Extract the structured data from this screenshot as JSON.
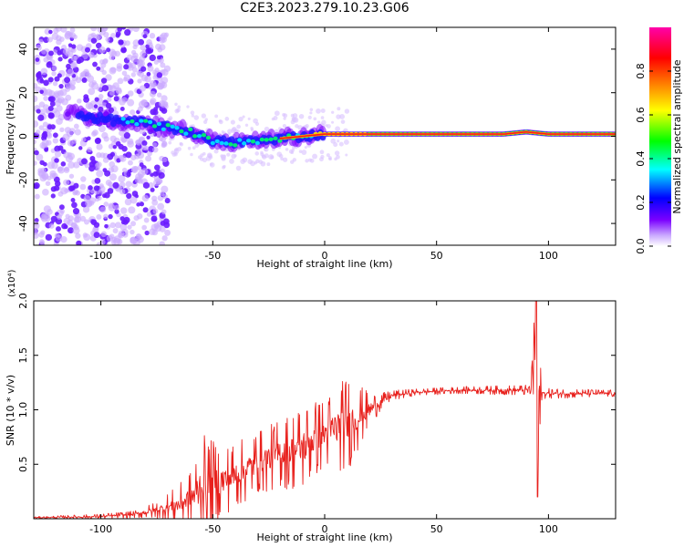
{
  "figure": {
    "title": "C2E3.2023.279.10.23.G06"
  },
  "chart_data": [
    {
      "type": "heatmap",
      "xlabel": "Height of straight line (km)",
      "ylabel": "Frequency (Hz)",
      "xlim": [
        -130,
        130
      ],
      "ylim": [
        -50,
        50
      ],
      "xticks": [
        -100,
        -50,
        0,
        50,
        100
      ],
      "yticks": [
        -40,
        -20,
        0,
        20,
        40
      ],
      "colorbar": {
        "label": "Normalized spectral amplitude",
        "range": [
          0.0,
          1.0
        ],
        "ticks": [
          0.0,
          0.2,
          0.4,
          0.6,
          0.8
        ],
        "colormap": [
          "#ffffff",
          "#c9a8ff",
          "#7b00ff",
          "#0000ff",
          "#00ffff",
          "#00ff00",
          "#ffff00",
          "#ff8000",
          "#ff0000",
          "#ff00aa"
        ]
      },
      "ridge": {
        "x": [
          -130,
          -110,
          -100,
          -90,
          -80,
          -70,
          -60,
          -50,
          -40,
          -30,
          -20,
          -10,
          0,
          10,
          20,
          50,
          80,
          90,
          100,
          130
        ],
        "y": [
          13,
          10,
          8,
          7,
          6,
          4,
          2,
          -2,
          -3,
          -2,
          -1,
          0,
          1,
          1,
          1,
          1,
          1,
          2,
          1,
          1
        ]
      }
    },
    {
      "type": "line",
      "xlabel": "Height of straight line (km)",
      "ylabel": "SNR (10 * v/v)",
      "y_multiplier_label": "(x10⁴)",
      "xlim": [
        -130,
        130
      ],
      "ylim": [
        0,
        2.0
      ],
      "xticks": [
        -100,
        -50,
        0,
        50,
        100
      ],
      "yticks": [
        0.5,
        1.0,
        1.5,
        2.0
      ],
      "color": "#e8201c",
      "envelope": {
        "x": [
          -130,
          -100,
          -85,
          -75,
          -65,
          -58,
          -55,
          -50,
          -45,
          -40,
          -35,
          -30,
          -25,
          -20,
          -15,
          -10,
          -5,
          0,
          5,
          10,
          15,
          20,
          25,
          30,
          40,
          50,
          60,
          70,
          80,
          85,
          88,
          90,
          92,
          93,
          94,
          95,
          96,
          97,
          100,
          110,
          120,
          130
        ],
        "y": [
          0.01,
          0.02,
          0.04,
          0.08,
          0.13,
          0.22,
          0.3,
          0.32,
          0.35,
          0.4,
          0.45,
          0.52,
          0.55,
          0.6,
          0.62,
          0.65,
          0.73,
          0.78,
          0.83,
          0.87,
          0.93,
          1.0,
          1.07,
          1.13,
          1.16,
          1.17,
          1.18,
          1.18,
          1.18,
          1.18,
          1.18,
          1.18,
          1.18,
          1.3,
          1.7,
          0.6,
          1.1,
          1.15,
          1.15,
          1.15,
          1.15,
          1.15
        ]
      },
      "noise_amplitude": {
        "x": [
          -130,
          -85,
          -75,
          -60,
          -55,
          -45,
          -30,
          -20,
          -10,
          0,
          10,
          20,
          25,
          30,
          40,
          60,
          90,
          92,
          98,
          130
        ],
        "y": [
          0.005,
          0.02,
          0.05,
          0.15,
          0.3,
          0.2,
          0.18,
          0.2,
          0.25,
          0.2,
          0.28,
          0.1,
          0.05,
          0.03,
          0.02,
          0.02,
          0.03,
          0.1,
          0.03,
          0.02
        ]
      },
      "spike": {
        "x": 94.5,
        "max": 2.0,
        "min": 0.2
      }
    }
  ]
}
